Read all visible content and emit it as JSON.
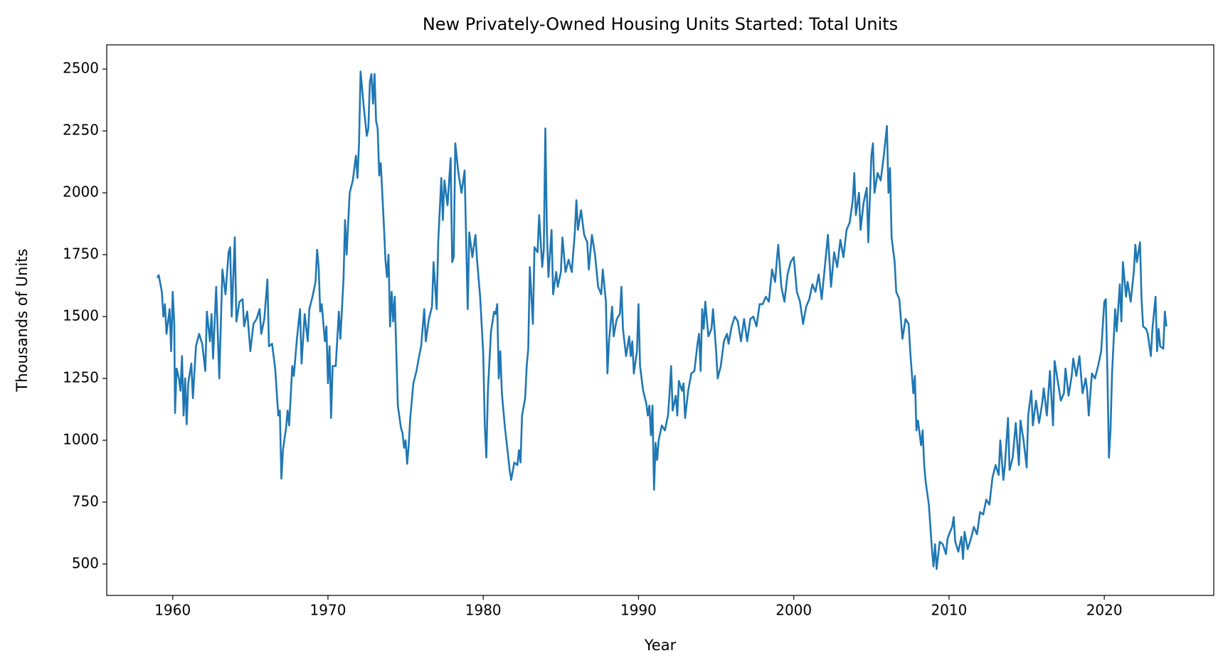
{
  "chart_data": {
    "type": "line",
    "title": "New Privately-Owned Housing Units Started: Total Units",
    "xlabel": "Year",
    "ylabel": "Thousands of Units",
    "color": "#1f77b4",
    "xlim": [
      1955.75,
      2027.05
    ],
    "ylim": [
      373,
      2598
    ],
    "xticks": [
      1960,
      1970,
      1980,
      1990,
      2000,
      2010,
      2020
    ],
    "yticks": [
      500,
      750,
      1000,
      1250,
      1500,
      1750,
      2000,
      2250,
      2500
    ],
    "x": [
      1959.0,
      1959.1,
      1959.3,
      1959.4,
      1959.5,
      1959.6,
      1959.8,
      1959.9,
      1960.0,
      1960.1,
      1960.15,
      1960.25,
      1960.4,
      1960.5,
      1960.6,
      1960.7,
      1960.8,
      1960.9,
      1961.0,
      1961.2,
      1961.3,
      1961.5,
      1961.7,
      1961.9,
      1962.1,
      1962.2,
      1962.4,
      1962.5,
      1962.6,
      1962.8,
      1963.0,
      1963.2,
      1963.4,
      1963.6,
      1963.7,
      1963.8,
      1964.0,
      1964.1,
      1964.3,
      1964.5,
      1964.6,
      1964.8,
      1965.0,
      1965.2,
      1965.4,
      1965.6,
      1965.7,
      1965.9,
      1966.1,
      1966.2,
      1966.4,
      1966.6,
      1966.8,
      1966.9,
      1967.0,
      1967.1,
      1967.3,
      1967.4,
      1967.5,
      1967.7,
      1967.8,
      1968.0,
      1968.2,
      1968.3,
      1968.5,
      1968.7,
      1968.8,
      1969.0,
      1969.2,
      1969.3,
      1969.4,
      1969.5,
      1969.6,
      1969.8,
      1969.9,
      1970.0,
      1970.1,
      1970.2,
      1970.3,
      1970.5,
      1970.7,
      1970.8,
      1971.0,
      1971.1,
      1971.2,
      1971.4,
      1971.6,
      1971.8,
      1971.9,
      1972.0,
      1972.1,
      1972.3,
      1972.5,
      1972.6,
      1972.7,
      1972.8,
      1972.9,
      1973.0,
      1973.1,
      1973.2,
      1973.3,
      1973.4,
      1973.6,
      1973.7,
      1973.8,
      1973.9,
      1974.0,
      1974.1,
      1974.2,
      1974.3,
      1974.5,
      1974.7,
      1974.8,
      1974.9,
      1975.0,
      1975.1,
      1975.2,
      1975.3,
      1975.5,
      1975.7,
      1975.9,
      1976.0,
      1976.2,
      1976.3,
      1976.5,
      1976.7,
      1976.8,
      1977.0,
      1977.1,
      1977.3,
      1977.4,
      1977.5,
      1977.7,
      1977.9,
      1978.0,
      1978.1,
      1978.2,
      1978.4,
      1978.6,
      1978.8,
      1979.0,
      1979.1,
      1979.3,
      1979.5,
      1979.6,
      1979.8,
      1980.0,
      1980.1,
      1980.2,
      1980.3,
      1980.5,
      1980.7,
      1980.8,
      1980.9,
      1981.0,
      1981.1,
      1981.2,
      1981.4,
      1981.6,
      1981.7,
      1981.8,
      1982.0,
      1982.2,
      1982.3,
      1982.4,
      1982.5,
      1982.7,
      1982.8,
      1982.9,
      1983.0,
      1983.2,
      1983.3,
      1983.5,
      1983.6,
      1983.8,
      1983.9,
      1984.0,
      1984.1,
      1984.2,
      1984.4,
      1984.5,
      1984.7,
      1984.8,
      1985.0,
      1985.1,
      1985.3,
      1985.5,
      1985.7,
      1985.9,
      1986.0,
      1986.1,
      1986.3,
      1986.5,
      1986.7,
      1986.8,
      1987.0,
      1987.2,
      1987.4,
      1987.6,
      1987.7,
      1987.9,
      1988.0,
      1988.1,
      1988.3,
      1988.4,
      1988.6,
      1988.8,
      1988.9,
      1989.0,
      1989.2,
      1989.4,
      1989.5,
      1989.6,
      1989.7,
      1989.9,
      1990.0,
      1990.1,
      1990.3,
      1990.5,
      1990.6,
      1990.7,
      1990.8,
      1990.9,
      1991.0,
      1991.1,
      1991.2,
      1991.3,
      1991.5,
      1991.7,
      1991.9,
      1992.0,
      1992.1,
      1992.2,
      1992.4,
      1992.5,
      1992.6,
      1992.8,
      1992.9,
      1993.0,
      1993.2,
      1993.4,
      1993.6,
      1993.8,
      1993.9,
      1994.0,
      1994.1,
      1994.2,
      1994.3,
      1994.5,
      1994.7,
      1994.8,
      1995.0,
      1995.1,
      1995.3,
      1995.5,
      1995.7,
      1995.8,
      1996.0,
      1996.2,
      1996.4,
      1996.6,
      1996.8,
      1997.0,
      1997.2,
      1997.4,
      1997.6,
      1997.8,
      1998.0,
      1998.2,
      1998.4,
      1998.6,
      1998.8,
      1998.9,
      1999.0,
      1999.2,
      1999.4,
      1999.6,
      1999.8,
      2000.0,
      2000.2,
      2000.4,
      2000.6,
      2000.8,
      2001.0,
      2001.2,
      2001.4,
      2001.6,
      2001.8,
      2002.0,
      2002.2,
      2002.4,
      2002.6,
      2002.8,
      2003.0,
      2003.2,
      2003.4,
      2003.6,
      2003.8,
      2003.9,
      2004.0,
      2004.2,
      2004.3,
      2004.5,
      2004.7,
      2004.8,
      2005.0,
      2005.1,
      2005.2,
      2005.4,
      2005.6,
      2005.8,
      2006.0,
      2006.1,
      2006.2,
      2006.3,
      2006.5,
      2006.6,
      2006.8,
      2006.9,
      2007.0,
      2007.2,
      2007.4,
      2007.5,
      2007.7,
      2007.8,
      2007.9,
      2008.0,
      2008.2,
      2008.3,
      2008.4,
      2008.5,
      2008.7,
      2008.8,
      2008.9,
      2009.0,
      2009.1,
      2009.2,
      2009.4,
      2009.6,
      2009.8,
      2009.9,
      2010.0,
      2010.2,
      2010.3,
      2010.4,
      2010.6,
      2010.8,
      2010.9,
      2011.0,
      2011.2,
      2011.4,
      2011.6,
      2011.8,
      2012.0,
      2012.2,
      2012.4,
      2012.6,
      2012.8,
      2013.0,
      2013.2,
      2013.3,
      2013.5,
      2013.6,
      2013.8,
      2013.9,
      2014.1,
      2014.3,
      2014.5,
      2014.6,
      2014.8,
      2015.0,
      2015.1,
      2015.3,
      2015.4,
      2015.6,
      2015.8,
      2016.0,
      2016.1,
      2016.3,
      2016.5,
      2016.7,
      2016.8,
      2017.0,
      2017.2,
      2017.4,
      2017.5,
      2017.7,
      2017.9,
      2018.0,
      2018.2,
      2018.4,
      2018.6,
      2018.8,
      2018.9,
      2019.0,
      2019.2,
      2019.4,
      2019.6,
      2019.8,
      2020.0,
      2020.1,
      2020.2,
      2020.3,
      2020.4,
      2020.5,
      2020.7,
      2020.8,
      2021.0,
      2021.1,
      2021.2,
      2021.4,
      2021.5,
      2021.7,
      2021.9,
      2022.0,
      2022.1,
      2022.3,
      2022.4,
      2022.5,
      2022.7,
      2022.8,
      2023.0,
      2023.1,
      2023.3,
      2023.4,
      2023.5,
      2023.6,
      2023.8,
      2023.9,
      2024.0
    ],
    "values": [
      1657,
      1667,
      1600,
      1500,
      1550,
      1430,
      1530,
      1360,
      1600,
      1470,
      1110,
      1290,
      1250,
      1200,
      1340,
      1100,
      1250,
      1065,
      1230,
      1310,
      1170,
      1380,
      1430,
      1390,
      1280,
      1520,
      1400,
      1510,
      1330,
      1620,
      1250,
      1690,
      1590,
      1760,
      1780,
      1500,
      1820,
      1480,
      1560,
      1570,
      1460,
      1520,
      1360,
      1470,
      1490,
      1530,
      1430,
      1490,
      1650,
      1380,
      1390,
      1290,
      1100,
      1120,
      845,
      960,
      1050,
      1120,
      1060,
      1300,
      1260,
      1410,
      1530,
      1310,
      1510,
      1400,
      1530,
      1580,
      1640,
      1770,
      1700,
      1520,
      1550,
      1400,
      1460,
      1230,
      1380,
      1090,
      1300,
      1300,
      1520,
      1410,
      1650,
      1890,
      1750,
      2000,
      2050,
      2150,
      2060,
      2200,
      2490,
      2350,
      2230,
      2260,
      2450,
      2480,
      2360,
      2480,
      2290,
      2260,
      2070,
      2120,
      1870,
      1730,
      1660,
      1750,
      1460,
      1600,
      1480,
      1580,
      1140,
      1050,
      1030,
      970,
      1000,
      905,
      980,
      1090,
      1230,
      1280,
      1350,
      1380,
      1530,
      1400,
      1490,
      1540,
      1720,
      1530,
      1800,
      2060,
      1890,
      2050,
      1950,
      2140,
      1720,
      1740,
      2200,
      2080,
      2000,
      2090,
      1530,
      1840,
      1740,
      1830,
      1730,
      1580,
      1350,
      1060,
      930,
      1200,
      1440,
      1520,
      1510,
      1550,
      1250,
      1360,
      1190,
      1050,
      940,
      880,
      840,
      910,
      900,
      960,
      910,
      1100,
      1170,
      1300,
      1370,
      1700,
      1470,
      1780,
      1760,
      1910,
      1700,
      1770,
      2260,
      1840,
      1660,
      1850,
      1590,
      1680,
      1620,
      1680,
      1820,
      1680,
      1730,
      1680,
      1840,
      1970,
      1850,
      1930,
      1830,
      1800,
      1690,
      1830,
      1750,
      1620,
      1590,
      1690,
      1560,
      1270,
      1400,
      1540,
      1420,
      1490,
      1510,
      1620,
      1450,
      1340,
      1420,
      1340,
      1400,
      1270,
      1360,
      1550,
      1300,
      1200,
      1150,
      1100,
      1140,
      1020,
      1140,
      800,
      990,
      920,
      1000,
      1060,
      1040,
      1100,
      1190,
      1300,
      1120,
      1180,
      1100,
      1240,
      1200,
      1230,
      1090,
      1200,
      1270,
      1280,
      1390,
      1430,
      1280,
      1530,
      1450,
      1560,
      1420,
      1450,
      1530,
      1360,
      1250,
      1300,
      1400,
      1430,
      1390,
      1460,
      1500,
      1480,
      1400,
      1490,
      1400,
      1490,
      1500,
      1460,
      1550,
      1550,
      1580,
      1560,
      1690,
      1640,
      1720,
      1790,
      1620,
      1560,
      1670,
      1720,
      1740,
      1600,
      1560,
      1470,
      1540,
      1570,
      1630,
      1600,
      1670,
      1570,
      1700,
      1830,
      1620,
      1760,
      1700,
      1810,
      1740,
      1850,
      1880,
      1970,
      2080,
      1910,
      2000,
      1850,
      1960,
      2020,
      1800,
      2150,
      2200,
      2000,
      2080,
      2050,
      2150,
      2270,
      2000,
      2100,
      1820,
      1720,
      1600,
      1570,
      1490,
      1410,
      1490,
      1470,
      1360,
      1190,
      1260,
      1040,
      1080,
      980,
      1040,
      900,
      830,
      740,
      650,
      560,
      490,
      580,
      480,
      590,
      580,
      540,
      600,
      620,
      650,
      690,
      590,
      550,
      610,
      520,
      630,
      560,
      600,
      650,
      620,
      710,
      700,
      760,
      740,
      850,
      900,
      860,
      1000,
      840,
      900,
      1090,
      880,
      930,
      1070,
      900,
      1080,
      1000,
      890,
      1100,
      1200,
      1060,
      1160,
      1070,
      1150,
      1210,
      1100,
      1280,
      1060,
      1320,
      1240,
      1160,
      1190,
      1290,
      1180,
      1260,
      1330,
      1260,
      1340,
      1190,
      1250,
      1200,
      1100,
      1270,
      1250,
      1300,
      1360,
      1560,
      1570,
      1270,
      930,
      1040,
      1270,
      1530,
      1440,
      1630,
      1480,
      1720,
      1580,
      1640,
      1560,
      1680,
      1790,
      1720,
      1800,
      1570,
      1460,
      1450,
      1430,
      1340,
      1450,
      1580,
      1360,
      1450,
      1380,
      1370,
      1520,
      1460
    ]
  }
}
